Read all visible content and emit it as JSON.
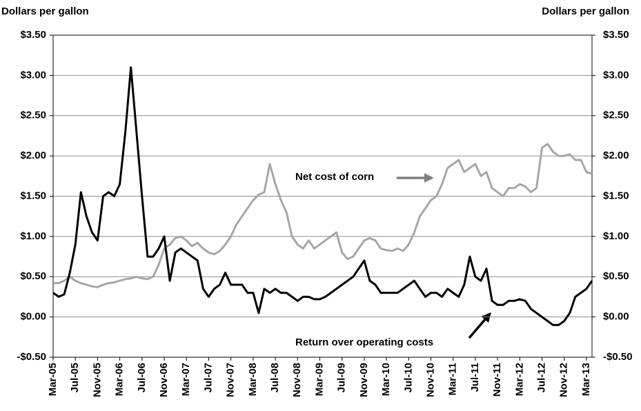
{
  "chart_data": {
    "type": "line",
    "y_axis_title": "Dollars per gallon",
    "y2_axis_title": "Dollars per gallon",
    "categories": [
      "Mar-05",
      null,
      null,
      null,
      "Jul-05",
      null,
      null,
      null,
      "Nov-05",
      null,
      null,
      null,
      "Mar-06",
      null,
      null,
      null,
      "Jul-06",
      null,
      null,
      null,
      "Nov-06",
      null,
      null,
      null,
      "Mar-07",
      null,
      null,
      null,
      "Jul-07",
      null,
      null,
      null,
      "Nov-07",
      null,
      null,
      null,
      "Mar-08",
      null,
      null,
      null,
      "Jul-08",
      null,
      null,
      null,
      "Nov-08",
      null,
      null,
      null,
      "Mar-09",
      null,
      null,
      null,
      "Jul-09",
      null,
      null,
      null,
      "Nov-09",
      null,
      null,
      null,
      "Mar-10",
      null,
      null,
      null,
      "Jul-10",
      null,
      null,
      null,
      "Nov-10",
      null,
      null,
      null,
      "Mar-11",
      null,
      null,
      null,
      "Jul-11",
      null,
      null,
      null,
      "Nov-11",
      null,
      null,
      null,
      "Mar-12",
      null,
      null,
      null,
      "Jul-12",
      null,
      null,
      null,
      "Nov-12",
      null,
      null,
      null,
      "Mar-13",
      null
    ],
    "series": [
      {
        "name": "Net cost of corn",
        "color": "#a6a6a6",
        "values": [
          0.42,
          0.42,
          0.45,
          0.5,
          0.45,
          0.42,
          0.4,
          0.38,
          0.37,
          0.4,
          0.42,
          0.43,
          0.45,
          0.47,
          0.48,
          0.5,
          0.48,
          0.47,
          0.5,
          0.65,
          0.85,
          0.9,
          0.98,
          1.0,
          0.95,
          0.88,
          0.92,
          0.85,
          0.8,
          0.78,
          0.82,
          0.9,
          1.0,
          1.15,
          1.25,
          1.35,
          1.45,
          1.52,
          1.55,
          1.9,
          1.65,
          1.45,
          1.3,
          1.0,
          0.9,
          0.85,
          0.95,
          0.85,
          0.9,
          0.95,
          1.0,
          1.05,
          0.8,
          0.72,
          0.75,
          0.85,
          0.95,
          0.98,
          0.95,
          0.85,
          0.83,
          0.82,
          0.85,
          0.82,
          0.9,
          1.05,
          1.25,
          1.35,
          1.45,
          1.5,
          1.65,
          1.85,
          1.9,
          1.95,
          1.8,
          1.85,
          1.9,
          1.75,
          1.8,
          1.6,
          1.55,
          1.5,
          1.6,
          1.6,
          1.65,
          1.62,
          1.55,
          1.6,
          2.1,
          2.15,
          2.05,
          2.0,
          2.0,
          2.02,
          1.95,
          1.95,
          1.8,
          1.78
        ]
      },
      {
        "name": "Return over operating costs",
        "color": "#000000",
        "values": [
          0.3,
          0.25,
          0.28,
          0.55,
          0.9,
          1.55,
          1.25,
          1.05,
          0.95,
          1.5,
          1.55,
          1.5,
          1.65,
          2.3,
          3.1,
          2.3,
          1.5,
          0.75,
          0.75,
          0.85,
          1.0,
          0.45,
          0.8,
          0.85,
          0.8,
          0.75,
          0.7,
          0.35,
          0.25,
          0.35,
          0.4,
          0.55,
          0.4,
          0.4,
          0.4,
          0.3,
          0.3,
          0.05,
          0.35,
          0.3,
          0.35,
          0.3,
          0.3,
          0.25,
          0.2,
          0.25,
          0.25,
          0.22,
          0.22,
          0.25,
          0.3,
          0.35,
          0.4,
          0.45,
          0.5,
          0.6,
          0.7,
          0.45,
          0.4,
          0.3,
          0.3,
          0.3,
          0.3,
          0.35,
          0.4,
          0.45,
          0.35,
          0.25,
          0.3,
          0.3,
          0.25,
          0.35,
          0.3,
          0.25,
          0.4,
          0.75,
          0.5,
          0.45,
          0.6,
          0.2,
          0.15,
          0.15,
          0.2,
          0.2,
          0.22,
          0.2,
          0.1,
          0.05,
          0,
          -0.05,
          -0.1,
          -0.1,
          -0.05,
          0.05,
          0.25,
          0.3,
          0.35,
          0.45
        ]
      }
    ],
    "ylim": [
      -0.5,
      3.5
    ],
    "yticks": [
      {
        "value": -0.5,
        "label": "-$0.50"
      },
      {
        "value": 0,
        "label": "$0.00"
      },
      {
        "value": 0.5,
        "label": "$0.50"
      },
      {
        "value": 1.0,
        "label": "$1.00"
      },
      {
        "value": 1.5,
        "label": "$1.50"
      },
      {
        "value": 2.0,
        "label": "$2.00"
      },
      {
        "value": 2.5,
        "label": "$2.50"
      },
      {
        "value": 3.0,
        "label": "$3.00"
      },
      {
        "value": 3.5,
        "label": "$3.50"
      }
    ],
    "y2lim": [
      -0.5,
      3.5
    ],
    "y2ticks": [
      {
        "value": -0.5,
        "label": "-$0.50"
      },
      {
        "value": 0,
        "label": "$0.00"
      },
      {
        "value": 0.5,
        "label": "$0.50"
      },
      {
        "value": 1.0,
        "label": "$1.00"
      },
      {
        "value": 1.5,
        "label": "$1.50"
      },
      {
        "value": 2.0,
        "label": "$2.00"
      },
      {
        "value": 2.5,
        "label": "$2.50"
      },
      {
        "value": 3.0,
        "label": "$3.00"
      },
      {
        "value": 3.5,
        "label": "$3.50"
      }
    ],
    "grid": true
  }
}
